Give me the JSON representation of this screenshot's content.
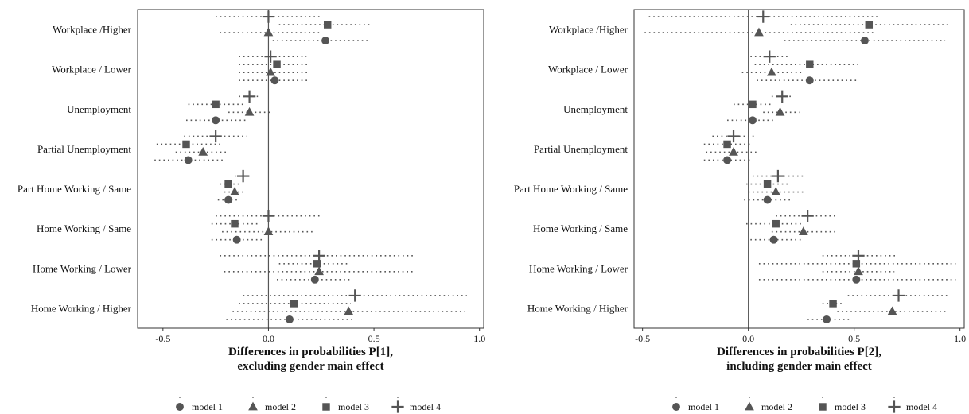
{
  "legend": [
    {
      "label": "model 1",
      "shape": "circle"
    },
    {
      "label": "model 2",
      "shape": "triangle"
    },
    {
      "label": "model 3",
      "shape": "square"
    },
    {
      "label": "model 4",
      "shape": "plus"
    }
  ],
  "colors": {
    "marker": "#555555",
    "ci": "#555555",
    "frame": "#333333",
    "zero_line": "#555555"
  },
  "chart_data": [
    {
      "type": "scatter",
      "subtype": "dot-whisker",
      "xlabel_lines": [
        "Differences in probabilities P[1],",
        "excluding gender main effect"
      ],
      "xlim": [
        -0.62,
        1.02
      ],
      "xticks": [
        -0.5,
        0.0,
        0.5,
        1.0
      ],
      "xtick_labels": [
        "-0.5",
        "0.0",
        "0.5",
        "1.0"
      ],
      "categories": [
        "Workplace /Higher",
        "Workplace / Lower",
        "Unemployment",
        "Partial Unemployment",
        "Part Home Working / Same",
        "Home Working / Same",
        "Home Working / Lower",
        "Home Working / Higher"
      ],
      "series": [
        {
          "name": "model 1",
          "points": [
            {
              "v": 0.27,
              "lo": 0.02,
              "hi": 0.48
            },
            {
              "v": 0.03,
              "lo": -0.14,
              "hi": 0.19
            },
            {
              "v": -0.25,
              "lo": -0.39,
              "hi": -0.1
            },
            {
              "v": -0.38,
              "lo": -0.54,
              "hi": -0.21
            },
            {
              "v": -0.19,
              "lo": -0.24,
              "hi": -0.14
            },
            {
              "v": -0.15,
              "lo": -0.27,
              "hi": -0.03
            },
            {
              "v": 0.22,
              "lo": 0.04,
              "hi": 0.39
            },
            {
              "v": 0.1,
              "lo": -0.2,
              "hi": 0.41
            }
          ]
        },
        {
          "name": "model 2",
          "points": [
            {
              "v": 0.0,
              "lo": -0.23,
              "hi": 0.24
            },
            {
              "v": 0.01,
              "lo": -0.14,
              "hi": 0.19
            },
            {
              "v": -0.09,
              "lo": -0.19,
              "hi": 0.01
            },
            {
              "v": -0.31,
              "lo": -0.44,
              "hi": -0.19
            },
            {
              "v": -0.16,
              "lo": -0.21,
              "hi": -0.11
            },
            {
              "v": 0.0,
              "lo": -0.22,
              "hi": 0.22
            },
            {
              "v": 0.24,
              "lo": -0.21,
              "hi": 0.69
            },
            {
              "v": 0.38,
              "lo": -0.17,
              "hi": 0.93
            }
          ]
        },
        {
          "name": "model 3",
          "points": [
            {
              "v": 0.28,
              "lo": 0.05,
              "hi": 0.48
            },
            {
              "v": 0.04,
              "lo": -0.14,
              "hi": 0.19
            },
            {
              "v": -0.25,
              "lo": -0.38,
              "hi": -0.11
            },
            {
              "v": -0.39,
              "lo": -0.53,
              "hi": -0.23
            },
            {
              "v": -0.19,
              "lo": -0.23,
              "hi": -0.14
            },
            {
              "v": -0.16,
              "lo": -0.27,
              "hi": -0.05
            },
            {
              "v": 0.23,
              "lo": 0.05,
              "hi": 0.38
            },
            {
              "v": 0.12,
              "lo": -0.14,
              "hi": 0.39
            }
          ]
        },
        {
          "name": "model 4",
          "points": [
            {
              "v": 0.0,
              "lo": -0.25,
              "hi": 0.25
            },
            {
              "v": 0.01,
              "lo": -0.14,
              "hi": 0.18
            },
            {
              "v": -0.09,
              "lo": -0.14,
              "hi": -0.05
            },
            {
              "v": -0.25,
              "lo": -0.4,
              "hi": -0.1
            },
            {
              "v": -0.12,
              "lo": -0.16,
              "hi": -0.08
            },
            {
              "v": 0.0,
              "lo": -0.25,
              "hi": 0.25
            },
            {
              "v": 0.24,
              "lo": -0.23,
              "hi": 0.69
            },
            {
              "v": 0.41,
              "lo": -0.12,
              "hi": 0.94
            }
          ]
        }
      ]
    },
    {
      "type": "scatter",
      "subtype": "dot-whisker",
      "xlabel_lines": [
        "Differences in probabilities P[2],",
        "including gender main effect"
      ],
      "xlim": [
        -0.54,
        1.02
      ],
      "xticks": [
        -0.5,
        0.0,
        0.5,
        1.0
      ],
      "xtick_labels": [
        "-0.5",
        "0.0",
        "0.5",
        "1.0"
      ],
      "categories": [
        "Workplace /Higher",
        "Workplace / Lower",
        "Unemployment",
        "Partial Unemployment",
        "Part Home Working / Same",
        "Home Working / Same",
        "Home Working / Lower",
        "Home Working / Higher"
      ],
      "series": [
        {
          "name": "model 1",
          "points": [
            {
              "v": 0.55,
              "lo": 0.17,
              "hi": 0.93
            },
            {
              "v": 0.29,
              "lo": 0.04,
              "hi": 0.52
            },
            {
              "v": 0.02,
              "lo": -0.1,
              "hi": 0.13
            },
            {
              "v": -0.1,
              "lo": -0.21,
              "hi": 0.02
            },
            {
              "v": 0.09,
              "lo": -0.02,
              "hi": 0.2
            },
            {
              "v": 0.12,
              "lo": 0.01,
              "hi": 0.25
            },
            {
              "v": 0.51,
              "lo": 0.05,
              "hi": 0.98
            },
            {
              "v": 0.37,
              "lo": 0.28,
              "hi": 0.49
            }
          ]
        },
        {
          "name": "model 2",
          "points": [
            {
              "v": 0.05,
              "lo": -0.49,
              "hi": 0.59
            },
            {
              "v": 0.11,
              "lo": -0.03,
              "hi": 0.25
            },
            {
              "v": 0.15,
              "lo": 0.07,
              "hi": 0.24
            },
            {
              "v": -0.07,
              "lo": -0.2,
              "hi": 0.05
            },
            {
              "v": 0.13,
              "lo": 0.0,
              "hi": 0.26
            },
            {
              "v": 0.26,
              "lo": 0.11,
              "hi": 0.41
            },
            {
              "v": 0.52,
              "lo": 0.35,
              "hi": 0.69
            },
            {
              "v": 0.68,
              "lo": 0.42,
              "hi": 0.94
            }
          ]
        },
        {
          "name": "model 3",
          "points": [
            {
              "v": 0.57,
              "lo": 0.2,
              "hi": 0.94
            },
            {
              "v": 0.29,
              "lo": 0.03,
              "hi": 0.52
            },
            {
              "v": 0.02,
              "lo": -0.07,
              "hi": 0.11
            },
            {
              "v": -0.1,
              "lo": -0.21,
              "hi": 0.02
            },
            {
              "v": 0.09,
              "lo": -0.01,
              "hi": 0.19
            },
            {
              "v": 0.13,
              "lo": -0.01,
              "hi": 0.25
            },
            {
              "v": 0.51,
              "lo": 0.05,
              "hi": 0.98
            },
            {
              "v": 0.4,
              "lo": 0.35,
              "hi": 0.45
            }
          ]
        },
        {
          "name": "model 4",
          "points": [
            {
              "v": 0.07,
              "lo": -0.47,
              "hi": 0.61
            },
            {
              "v": 0.1,
              "lo": 0.01,
              "hi": 0.19
            },
            {
              "v": 0.16,
              "lo": 0.11,
              "hi": 0.21
            },
            {
              "v": -0.07,
              "lo": -0.17,
              "hi": 0.03
            },
            {
              "v": 0.14,
              "lo": 0.02,
              "hi": 0.26
            },
            {
              "v": 0.28,
              "lo": 0.13,
              "hi": 0.42
            },
            {
              "v": 0.52,
              "lo": 0.35,
              "hi": 0.7
            },
            {
              "v": 0.71,
              "lo": 0.47,
              "hi": 0.95
            }
          ]
        }
      ]
    }
  ]
}
